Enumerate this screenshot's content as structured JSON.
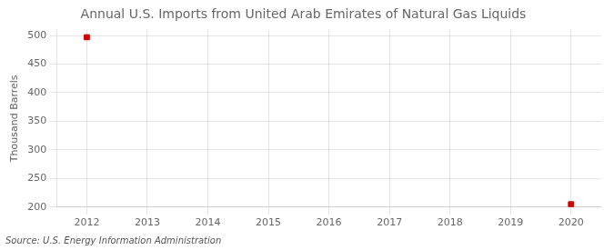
{
  "chart_data": {
    "type": "scatter",
    "title": "Annual U.S. Imports from United Arab Emirates of Natural Gas Liquids",
    "ylabel": "Thousand Barrels",
    "annotation": "Source: U.S. Energy Information Administration",
    "x": [
      2012,
      2020
    ],
    "values": [
      497,
      205
    ],
    "color": "#cc0000",
    "marker": "square",
    "xlim": [
      2011.5,
      2020.5
    ],
    "xticks": [
      2012,
      2013,
      2014,
      2015,
      2016,
      2017,
      2018,
      2019,
      2020
    ],
    "ylim": [
      200,
      510
    ],
    "yticks": [
      200,
      250,
      300,
      350,
      400,
      450,
      500
    ],
    "grid": true
  }
}
